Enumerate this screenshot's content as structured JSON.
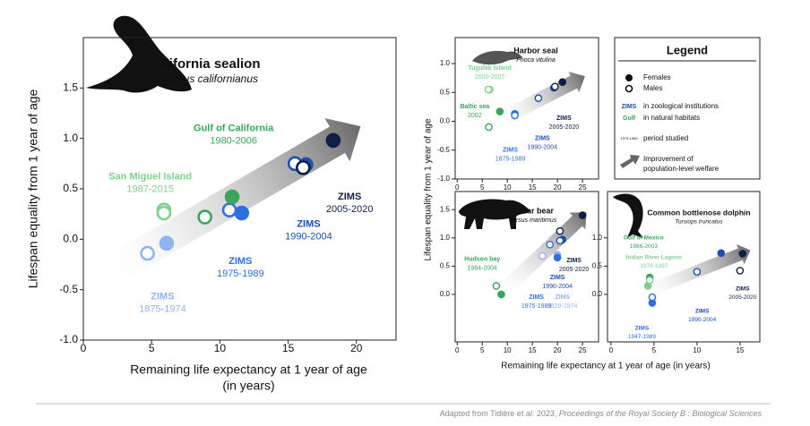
{
  "chart_data": [
    {
      "type": "scatter",
      "title": "California sealion",
      "subtitle": "Zalophus californianus",
      "ylabel": "Lifespan equality from 1 year of age",
      "xlabel_lines": [
        "Remaining life expectancy at 1 year of age",
        "(in years)"
      ],
      "xlim": [
        0,
        22.9
      ],
      "ylim": [
        -1,
        2
      ],
      "xticks": [
        0,
        5,
        10,
        15,
        20
      ],
      "yticks": [
        {
          "value": -1,
          "label": "-1.0"
        },
        -0.5,
        {
          "value": 0,
          "label": "0.0"
        },
        0.5,
        {
          "value": 1,
          "label": "1.0"
        },
        1.5
      ],
      "series": [
        {
          "name": "ZIMS",
          "period": "1875-1974",
          "color": "#8fb5f0",
          "x": [
            6.1,
            4.7
          ],
          "values": [
            -0.04,
            -0.14
          ],
          "filled": [
            true,
            false
          ]
        },
        {
          "name": "ZIMS",
          "period": "1975-1989",
          "color": "#2f6fe0",
          "x": [
            11.6,
            10.7
          ],
          "values": [
            0.26,
            0.29
          ],
          "filled": [
            true,
            false
          ]
        },
        {
          "name": "ZIMS",
          "period": "1990-2004",
          "color": "#1a4fb0",
          "x": [
            16.3,
            15.5
          ],
          "values": [
            0.74,
            0.75
          ],
          "filled": [
            true,
            false
          ]
        },
        {
          "name": "ZIMS",
          "period": "2005-2020",
          "color": "#0d1f45",
          "x": [
            18.3,
            16.1
          ],
          "values": [
            0.98,
            0.71
          ],
          "filled": [
            true,
            false
          ]
        },
        {
          "name": "Gulf of California",
          "period": "1980-2006",
          "color": "#3aa55a",
          "x": [
            10.9,
            8.9
          ],
          "values": [
            0.42,
            0.22
          ],
          "filled": [
            true,
            false
          ]
        },
        {
          "name": "San Miguel Island",
          "period": "1987-2015",
          "color": "#7fd08f",
          "x": [
            5.9,
            5.9
          ],
          "values": [
            0.29,
            0.26
          ],
          "filled": [
            false,
            false
          ]
        }
      ]
    },
    {
      "type": "scatter",
      "title": "Harbor seal",
      "subtitle": "Phoca vitulina",
      "xlim": [
        -0.4,
        28.2
      ],
      "ylim": [
        -1,
        1.45
      ],
      "xticks": [
        0,
        5,
        10,
        15,
        20,
        25
      ],
      "yticks": [
        {
          "value": -1,
          "label": "-1.0"
        },
        -0.5,
        {
          "value": 0,
          "label": "0.0"
        },
        0.5,
        {
          "value": 1,
          "label": "1.0"
        }
      ],
      "series": [
        {
          "name": "Tugidak Island",
          "period": "2000-2007",
          "color": "#7fd08f",
          "x": [
            6.5,
            6.2
          ],
          "values": [
            0.55,
            0.55
          ],
          "filled": [
            false,
            false
          ]
        },
        {
          "name": "Baltic sea",
          "period": "2002",
          "color": "#3aa55a",
          "x": [
            8.5,
            6.3
          ],
          "values": [
            0.17,
            -0.1
          ],
          "filled": [
            true,
            false
          ]
        },
        {
          "name": "ZIMS",
          "period": "1875-1989",
          "color": "#2f6fe0",
          "x": [
            11.5,
            11.5
          ],
          "values": [
            0.13,
            0.1
          ],
          "filled": [
            true,
            false
          ]
        },
        {
          "name": "ZIMS",
          "period": "1990-2004",
          "color": "#1a4fb0",
          "x": [
            19.3,
            16.2
          ],
          "values": [
            0.58,
            0.4
          ],
          "filled": [
            true,
            false
          ]
        },
        {
          "name": "ZIMS",
          "period": "2005-2020",
          "color": "#0d1f45",
          "x": [
            21,
            19.5
          ],
          "values": [
            0.68,
            0.6
          ],
          "filled": [
            true,
            false
          ]
        }
      ]
    },
    {
      "type": "scatter",
      "title": "Polar bear",
      "subtitle": "Ursus maritimus",
      "xlim": [
        -0.4,
        28.2
      ],
      "ylim": [
        -0.84,
        1.82
      ],
      "xticks": [
        0,
        5,
        10,
        15,
        20,
        25
      ],
      "yticks": [
        {
          "value": 0,
          "label": "0.0"
        },
        0.5,
        {
          "value": 1,
          "label": "1.0"
        },
        1.5
      ],
      "series": [
        {
          "name": "Hudson bay",
          "period": "1984-2004",
          "color": "#3aa55a",
          "x": [
            8.8,
            7.8
          ],
          "values": [
            0.0,
            0.15
          ],
          "filled": [
            true,
            false
          ]
        },
        {
          "name": "ZIMS",
          "period": "1820-1974",
          "color": "#8fb5f0",
          "x": [
            20,
            17
          ],
          "values": [
            0.7,
            0.68
          ],
          "filled": [
            true,
            false
          ]
        },
        {
          "name": "ZIMS",
          "period": "1975-1989",
          "color": "#2f6fe0",
          "x": [
            20,
            18.5
          ],
          "values": [
            0.65,
            0.88
          ],
          "filled": [
            true,
            false
          ]
        },
        {
          "name": "ZIMS",
          "period": "1990-2004",
          "color": "#1a4fb0",
          "x": [
            21,
            20.5
          ],
          "values": [
            0.97,
            0.95
          ],
          "filled": [
            true,
            false
          ]
        },
        {
          "name": "ZIMS",
          "period": "2005-2020",
          "color": "#0d1f45",
          "x": [
            25,
            20.5
          ],
          "values": [
            1.4,
            1.12
          ],
          "filled": [
            true,
            false
          ]
        }
      ]
    },
    {
      "type": "scatter",
      "title": "Common bottlenose dolphin",
      "subtitle": "Tursiops truncatus",
      "xlim": [
        -0.4,
        17.3
      ],
      "ylim": [
        -0.84,
        1.82
      ],
      "xticks": [
        0,
        5,
        10,
        15
      ],
      "yticks": [
        {
          "value": 0,
          "label": "0.0"
        },
        0.5,
        {
          "value": 1,
          "label": "1.0"
        }
      ],
      "series": [
        {
          "name": "Gulf of Mexico",
          "period": "1986-2003",
          "color": "#3aa55a",
          "x": [
            4.5
          ],
          "values": [
            0.3
          ],
          "filled": [
            true
          ]
        },
        {
          "name": "Indian River Lagoon",
          "period": "1978-1997",
          "color": "#7fd08f",
          "x": [
            4.3,
            4.5
          ],
          "values": [
            0.15,
            0.25
          ],
          "filled": [
            true,
            false
          ]
        },
        {
          "name": "ZIMS",
          "period": "1947-1989",
          "color": "#2f6fe0",
          "x": [
            4.8,
            4.8
          ],
          "values": [
            -0.15,
            -0.05
          ],
          "filled": [
            true,
            false
          ]
        },
        {
          "name": "ZIMS",
          "period": "1990-2004",
          "color": "#1a4fb0",
          "x": [
            12.8,
            10
          ],
          "values": [
            0.73,
            0.4
          ],
          "filled": [
            true,
            false
          ]
        },
        {
          "name": "ZIMS",
          "period": "2005-2020",
          "color": "#0d1f45",
          "x": [
            15.3,
            15
          ],
          "values": [
            0.72,
            0.42
          ],
          "filled": [
            true,
            false
          ]
        }
      ]
    }
  ],
  "shared_axes": {
    "ylabel": "Lifespan equality from 1 year of age",
    "xlabel": "Remaining life expectancy at 1 year of age (in years)"
  },
  "legend": {
    "title": "Legend",
    "females": "Females",
    "males": "Males",
    "zims_key": "ZIMS",
    "zims_label": "in zoological institutions",
    "gulf_key": "Gulf",
    "gulf_label": "in natural habitats",
    "period_key": "1975-1989",
    "period_label": "period studied",
    "arrow_label": [
      "Improvement of",
      "population-level welfare"
    ]
  },
  "footer": {
    "prefix": "Adapted from Tidière et ",
    "etal": "al.",
    "middle": " 2023, ",
    "journal": "Proceedings of the Royal Society B : Biological Sciences"
  }
}
